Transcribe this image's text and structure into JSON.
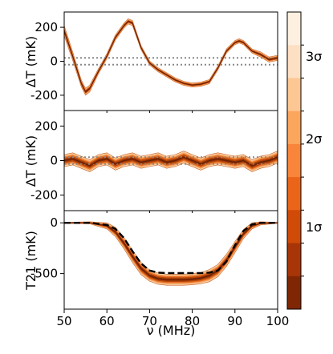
{
  "chart_data": [
    {
      "type": "line",
      "panel": "residual-1",
      "ylabel": "ΔT (mK)",
      "ylim": [
        -290,
        290
      ],
      "yticks": [
        200,
        0,
        -200
      ],
      "xlim": [
        50,
        100
      ],
      "reference_lines": [
        20,
        -20
      ],
      "series": [
        {
          "x": [
            50,
            52,
            54,
            55,
            56,
            58,
            60,
            62,
            64,
            65,
            66,
            68,
            70,
            72,
            74,
            76,
            78,
            80,
            82,
            84,
            86,
            88,
            90,
            91,
            92,
            94,
            96,
            98,
            100
          ],
          "values": [
            180,
            30,
            -130,
            -180,
            -160,
            -60,
            30,
            140,
            210,
            235,
            225,
            80,
            -10,
            -50,
            -80,
            -110,
            -130,
            -140,
            -135,
            -120,
            -40,
            60,
            110,
            120,
            110,
            60,
            40,
            10,
            20
          ],
          "band_halfwidth": [
            30,
            25,
            20,
            20,
            20,
            15,
            15,
            15,
            15,
            15,
            15,
            12,
            12,
            12,
            12,
            12,
            12,
            12,
            12,
            12,
            12,
            12,
            12,
            12,
            12,
            12,
            15,
            15,
            15
          ]
        }
      ]
    },
    {
      "type": "line",
      "panel": "residual-2",
      "ylabel": "ΔT (mK)",
      "ylim": [
        -290,
        290
      ],
      "yticks": [
        200,
        0,
        -200
      ],
      "xlim": [
        50,
        100
      ],
      "reference_lines": [
        20,
        -20
      ],
      "series": [
        {
          "x": [
            50,
            52,
            54,
            56,
            58,
            60,
            62,
            64,
            66,
            68,
            70,
            72,
            74,
            76,
            78,
            80,
            82,
            84,
            86,
            88,
            90,
            92,
            94,
            96,
            98,
            100
          ],
          "values": [
            0,
            10,
            -10,
            -30,
            0,
            10,
            -20,
            0,
            10,
            -10,
            0,
            10,
            -10,
            0,
            20,
            0,
            -20,
            0,
            10,
            0,
            -10,
            0,
            -30,
            -10,
            0,
            20
          ],
          "band_halfwidth": [
            35,
            35,
            35,
            35,
            35,
            35,
            35,
            35,
            35,
            35,
            35,
            35,
            35,
            35,
            35,
            35,
            35,
            35,
            35,
            35,
            35,
            35,
            35,
            35,
            35,
            35
          ]
        }
      ]
    },
    {
      "type": "line",
      "panel": "T21",
      "ylabel": "T21 (mK)",
      "ylim": [
        -850,
        120
      ],
      "yticks": [
        0,
        -500
      ],
      "xlim": [
        50,
        100
      ],
      "xticks": [
        50,
        60,
        70,
        80,
        90,
        100
      ],
      "xlabel": "ν (MHz)",
      "series": [
        {
          "style": "dashed",
          "x": [
            50,
            56,
            60,
            62,
            64,
            66,
            68,
            70,
            72,
            74,
            76,
            78,
            80,
            82,
            84,
            86,
            88,
            90,
            92,
            94,
            96,
            100
          ],
          "values": [
            0,
            0,
            -20,
            -60,
            -150,
            -280,
            -400,
            -470,
            -490,
            -495,
            -495,
            -495,
            -495,
            -495,
            -490,
            -470,
            -380,
            -220,
            -80,
            -15,
            0,
            0
          ]
        },
        {
          "style": "band-center",
          "x": [
            50,
            56,
            60,
            62,
            64,
            66,
            68,
            70,
            72,
            74,
            76,
            78,
            80,
            82,
            84,
            86,
            88,
            90,
            92,
            94,
            96,
            100
          ],
          "values": [
            0,
            0,
            -30,
            -90,
            -200,
            -330,
            -450,
            -520,
            -550,
            -560,
            -560,
            -560,
            -555,
            -545,
            -520,
            -470,
            -370,
            -240,
            -110,
            -30,
            -5,
            0
          ],
          "band_halfwidth": [
            5,
            10,
            30,
            45,
            55,
            60,
            60,
            55,
            55,
            55,
            55,
            55,
            55,
            55,
            60,
            60,
            60,
            55,
            45,
            30,
            15,
            5
          ]
        }
      ]
    }
  ],
  "colorbar": {
    "tick_labels": [
      "3σ",
      "2σ",
      "1σ"
    ],
    "colors": [
      "#fef0e1",
      "#fde0c3",
      "#fdc793",
      "#fca55d",
      "#f8853a",
      "#ea6519",
      "#d04a08",
      "#a83507",
      "#7f2704"
    ]
  }
}
